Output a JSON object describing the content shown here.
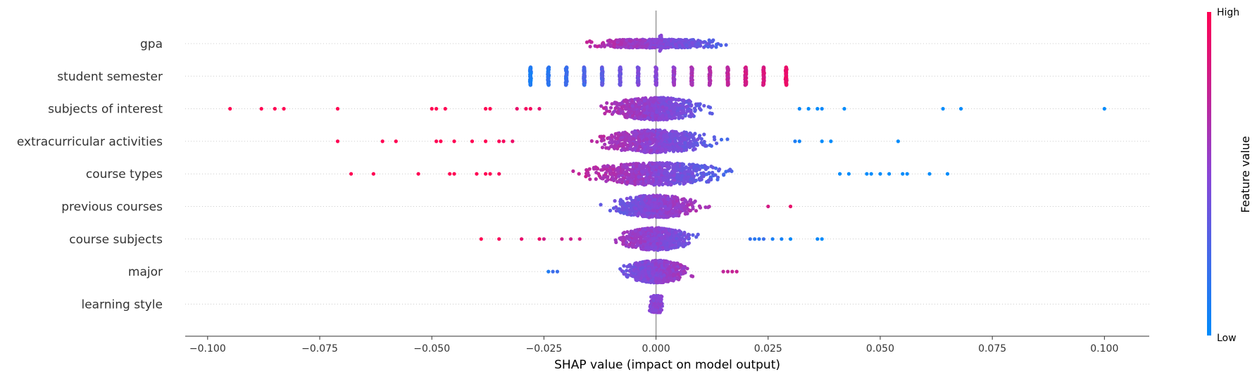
{
  "chart_data": {
    "type": "scatter",
    "title": "",
    "xlabel": "SHAP value (impact on model output)",
    "xlim": [
      -0.105,
      0.11
    ],
    "xticks": [
      -0.1,
      -0.075,
      -0.05,
      -0.025,
      0.0,
      0.025,
      0.05,
      0.075,
      0.1
    ],
    "xtick_labels": [
      "−0.100",
      "−0.075",
      "−0.050",
      "−0.025",
      "0.000",
      "0.025",
      "0.050",
      "0.075",
      "0.100"
    ],
    "grid": false,
    "colorbar": {
      "title": "Feature value",
      "high_label": "High",
      "low_label": "Low",
      "low_color": "#008bfb",
      "high_color": "#ff0052"
    },
    "features": [
      {
        "name": "gpa",
        "range": [
          -0.032,
          0.033
        ],
        "direction": "negative",
        "cont_range": [
          -0.032,
          0.033
        ]
      },
      {
        "name": "student semester",
        "direction": "positive",
        "stripes": [
          -0.028,
          -0.024,
          -0.02,
          -0.016,
          -0.012,
          -0.008,
          -0.004,
          0.0,
          0.004,
          0.008,
          0.012,
          0.016,
          0.02,
          0.024,
          0.029
        ]
      },
      {
        "name": "subjects of interest",
        "direction": "negative",
        "cont_range": [
          -0.022,
          0.027
        ],
        "outliers_neg": [
          -0.095,
          -0.088,
          -0.085,
          -0.083,
          -0.071,
          -0.05,
          -0.049,
          -0.047,
          -0.038,
          -0.037,
          -0.031,
          -0.029,
          -0.028,
          -0.026
        ],
        "outliers_pos": [
          0.032,
          0.034,
          0.036,
          0.037,
          0.042,
          0.064,
          0.068,
          0.1
        ]
      },
      {
        "name": "extracurricular activities",
        "direction": "negative",
        "cont_range": [
          -0.029,
          0.03
        ],
        "outliers_neg": [
          -0.071,
          -0.061,
          -0.058,
          -0.049,
          -0.048,
          -0.045,
          -0.041,
          -0.038,
          -0.035,
          -0.034,
          -0.032
        ],
        "outliers_pos": [
          0.031,
          0.032,
          0.037,
          0.039,
          0.054
        ]
      },
      {
        "name": "course types",
        "direction": "negative",
        "cont_range": [
          -0.034,
          0.04
        ],
        "outliers_neg": [
          -0.068,
          -0.063,
          -0.053,
          -0.046,
          -0.045,
          -0.04,
          -0.038,
          -0.037,
          -0.035
        ],
        "outliers_pos": [
          0.041,
          0.043,
          0.047,
          0.048,
          0.05,
          0.052,
          0.055,
          0.056,
          0.061,
          0.065
        ]
      },
      {
        "name": "previous courses",
        "direction": "positive",
        "cont_range": [
          -0.021,
          0.022
        ],
        "outliers_pos": [
          0.025,
          0.03
        ]
      },
      {
        "name": "course subjects",
        "direction": "negative",
        "cont_range": [
          -0.016,
          0.02
        ],
        "outliers_neg": [
          -0.039,
          -0.035,
          -0.03,
          -0.026,
          -0.025,
          -0.021,
          -0.019,
          -0.017
        ],
        "outliers_pos": [
          0.021,
          0.022,
          0.023,
          0.024,
          0.026,
          0.028,
          0.03,
          0.036,
          0.037
        ]
      },
      {
        "name": "major",
        "direction": "positive",
        "cont_range": [
          -0.018,
          0.014
        ],
        "outliers_neg": [
          -0.024,
          -0.023,
          -0.022
        ],
        "outliers_pos": [
          0.015,
          0.016,
          0.017,
          0.018
        ]
      },
      {
        "name": "learning style",
        "direction": "negative",
        "cont_range": [
          -0.003,
          0.003
        ]
      }
    ]
  }
}
